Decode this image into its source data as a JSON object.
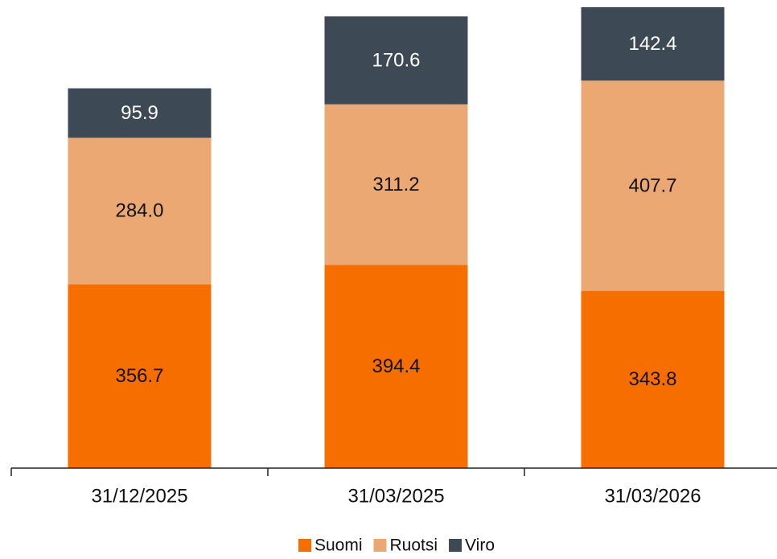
{
  "chart_data": {
    "type": "stacked_bar",
    "categories": [
      "31/12/2025",
      "31/03/2025",
      "31/03/2026"
    ],
    "series": [
      {
        "name": "Suomi",
        "color": "#f76e00",
        "values": [
          356.7,
          394.4,
          343.8
        ],
        "value_labels": [
          "356.7",
          "394.4",
          "343.8"
        ]
      },
      {
        "name": "Ruotsi",
        "color": "#eca872",
        "values": [
          284.0,
          311.2,
          407.7
        ],
        "value_labels": [
          "284.0",
          "311.2",
          "407.7"
        ]
      },
      {
        "name": "Viro",
        "color": "#3d4a55",
        "values": [
          95.9,
          170.6,
          142.4
        ],
        "value_labels": [
          "95.9",
          "170.6",
          "142.4"
        ]
      }
    ],
    "legend": "bottom"
  }
}
